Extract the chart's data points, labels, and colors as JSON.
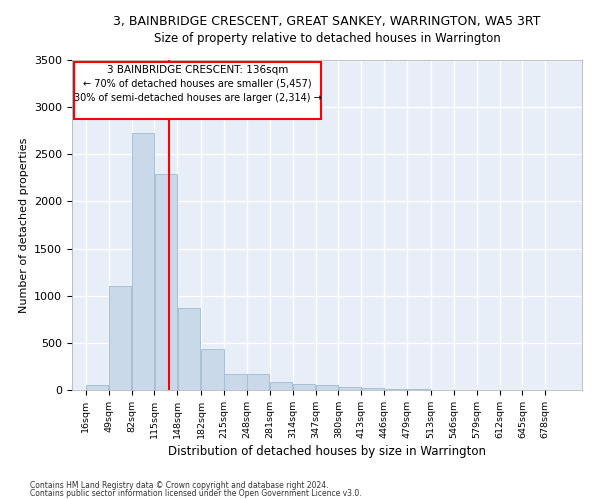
{
  "title": "3, BAINBRIDGE CRESCENT, GREAT SANKEY, WARRINGTON, WA5 3RT",
  "subtitle": "Size of property relative to detached houses in Warrington",
  "xlabel": "Distribution of detached houses by size in Warrington",
  "ylabel": "Number of detached properties",
  "bar_color": "#c9d9ea",
  "bar_edge_color": "#a8c0d6",
  "bg_color": "#e8eef8",
  "grid_color": "#ffffff",
  "red_line_x": 136,
  "annotation_title": "3 BAINBRIDGE CRESCENT: 136sqm",
  "annotation_line1": "← 70% of detached houses are smaller (5,457)",
  "annotation_line2": "30% of semi-detached houses are larger (2,314) →",
  "footer1": "Contains HM Land Registry data © Crown copyright and database right 2024.",
  "footer2": "Contains public sector information licensed under the Open Government Licence v3.0.",
  "categories": [
    "16sqm",
    "49sqm",
    "82sqm",
    "115sqm",
    "148sqm",
    "182sqm",
    "215sqm",
    "248sqm",
    "281sqm",
    "314sqm",
    "347sqm",
    "380sqm",
    "413sqm",
    "446sqm",
    "479sqm",
    "513sqm",
    "546sqm",
    "579sqm",
    "612sqm",
    "645sqm",
    "678sqm"
  ],
  "values": [
    50,
    1100,
    2730,
    2290,
    870,
    430,
    175,
    170,
    90,
    65,
    50,
    35,
    20,
    12,
    8,
    5,
    3,
    2,
    1,
    1,
    1
  ],
  "ylim": [
    0,
    3500
  ],
  "yticks": [
    0,
    500,
    1000,
    1500,
    2000,
    2500,
    3000,
    3500
  ],
  "bin_starts": [
    16,
    49,
    82,
    115,
    148,
    182,
    215,
    248,
    281,
    314,
    347,
    380,
    413,
    446,
    479,
    513,
    546,
    579,
    612,
    645,
    678
  ],
  "bin_width": 33
}
